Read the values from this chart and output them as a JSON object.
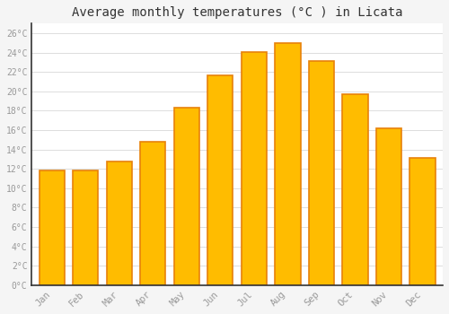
{
  "months": [
    "Jan",
    "Feb",
    "Mar",
    "Apr",
    "May",
    "Jun",
    "Jul",
    "Aug",
    "Sep",
    "Oct",
    "Nov",
    "Dec"
  ],
  "temperatures": [
    11.8,
    11.8,
    12.8,
    14.8,
    18.3,
    21.7,
    24.1,
    25.0,
    23.1,
    19.7,
    16.2,
    13.1
  ],
  "bar_color": "#FFBC00",
  "bar_edge_color": "#E8820A",
  "background_color": "#F5F5F5",
  "plot_bg_color": "#FFFFFF",
  "grid_color": "#DDDDDD",
  "title": "Average monthly temperatures (°C ) in Licata",
  "title_fontsize": 10,
  "tick_label_color": "#999999",
  "ylim": [
    0,
    27
  ],
  "ytick_values": [
    0,
    2,
    4,
    6,
    8,
    10,
    12,
    14,
    16,
    18,
    20,
    22,
    24,
    26
  ],
  "ytick_labels": [
    "0°C",
    "2°C",
    "4°C",
    "6°C",
    "8°C",
    "10°C",
    "12°C",
    "14°C",
    "16°C",
    "18°C",
    "20°C",
    "22°C",
    "24°C",
    "26°C"
  ],
  "bar_width": 0.75,
  "spine_color": "#333333",
  "title_color": "#333333"
}
